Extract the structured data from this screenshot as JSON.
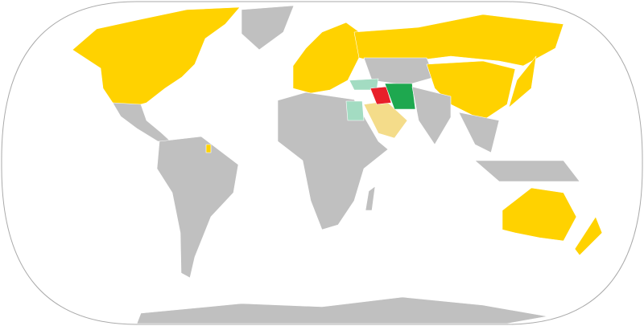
{
  "colors": {
    "ocean": "#ffffff",
    "frame": "#aaaaaa",
    "other": "#c0c0c0",
    "yellow": "#ffd200",
    "green": "#1ea84f",
    "red": "#e8202a",
    "teal_light": "#a3dcc2",
    "yellow_light": "#f4dc8a",
    "border": "#ffffff"
  }
}
